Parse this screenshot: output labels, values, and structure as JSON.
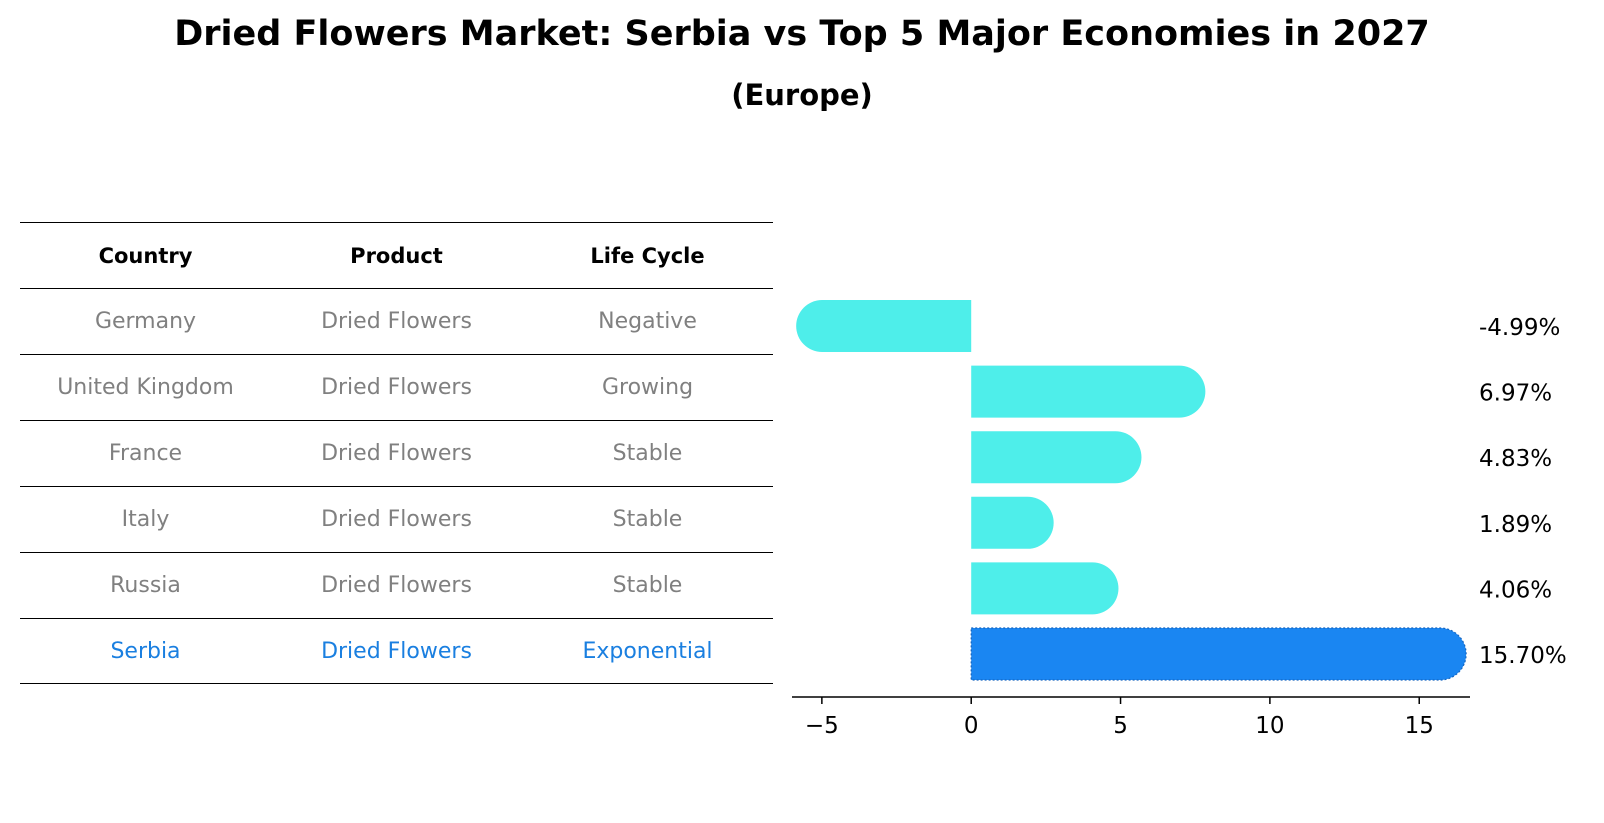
{
  "title": "Dried Flowers Market: Serbia vs Top 5 Major Economies in 2027",
  "subtitle": "(Europe)",
  "table": {
    "headers": [
      "Country",
      "Product",
      "Life Cycle"
    ],
    "rows": [
      {
        "country": "Germany",
        "product": "Dried Flowers",
        "life_cycle": "Negative"
      },
      {
        "country": "United Kingdom",
        "product": "Dried Flowers",
        "life_cycle": "Growing"
      },
      {
        "country": "France",
        "product": "Dried Flowers",
        "life_cycle": "Stable"
      },
      {
        "country": "Italy",
        "product": "Dried Flowers",
        "life_cycle": "Stable"
      },
      {
        "country": "Russia",
        "product": "Dried Flowers",
        "life_cycle": "Stable"
      },
      {
        "country": "Serbia",
        "product": "Dried Flowers",
        "life_cycle": "Exponential"
      }
    ]
  },
  "colors": {
    "bar": "#4eeeea",
    "highlight": "#1a86f2",
    "table_text": "#808080",
    "highlight_text": "#1a7fe0"
  },
  "chart_data": {
    "type": "bar",
    "orientation": "horizontal",
    "categories": [
      "Germany",
      "United Kingdom",
      "France",
      "Italy",
      "Russia",
      "Serbia"
    ],
    "values": [
      -4.99,
      6.97,
      4.83,
      1.89,
      4.06,
      15.7
    ],
    "labels": [
      "-4.99%",
      "6.97%",
      "4.83%",
      "1.89%",
      "4.06%",
      "15.70%"
    ],
    "highlight": "Serbia",
    "xlim": [
      -6,
      16.7
    ],
    "xticks": [
      -5,
      0,
      5,
      10,
      15
    ],
    "xtick_labels": [
      "−5",
      "0",
      "5",
      "10",
      "15"
    ],
    "grid": false
  }
}
